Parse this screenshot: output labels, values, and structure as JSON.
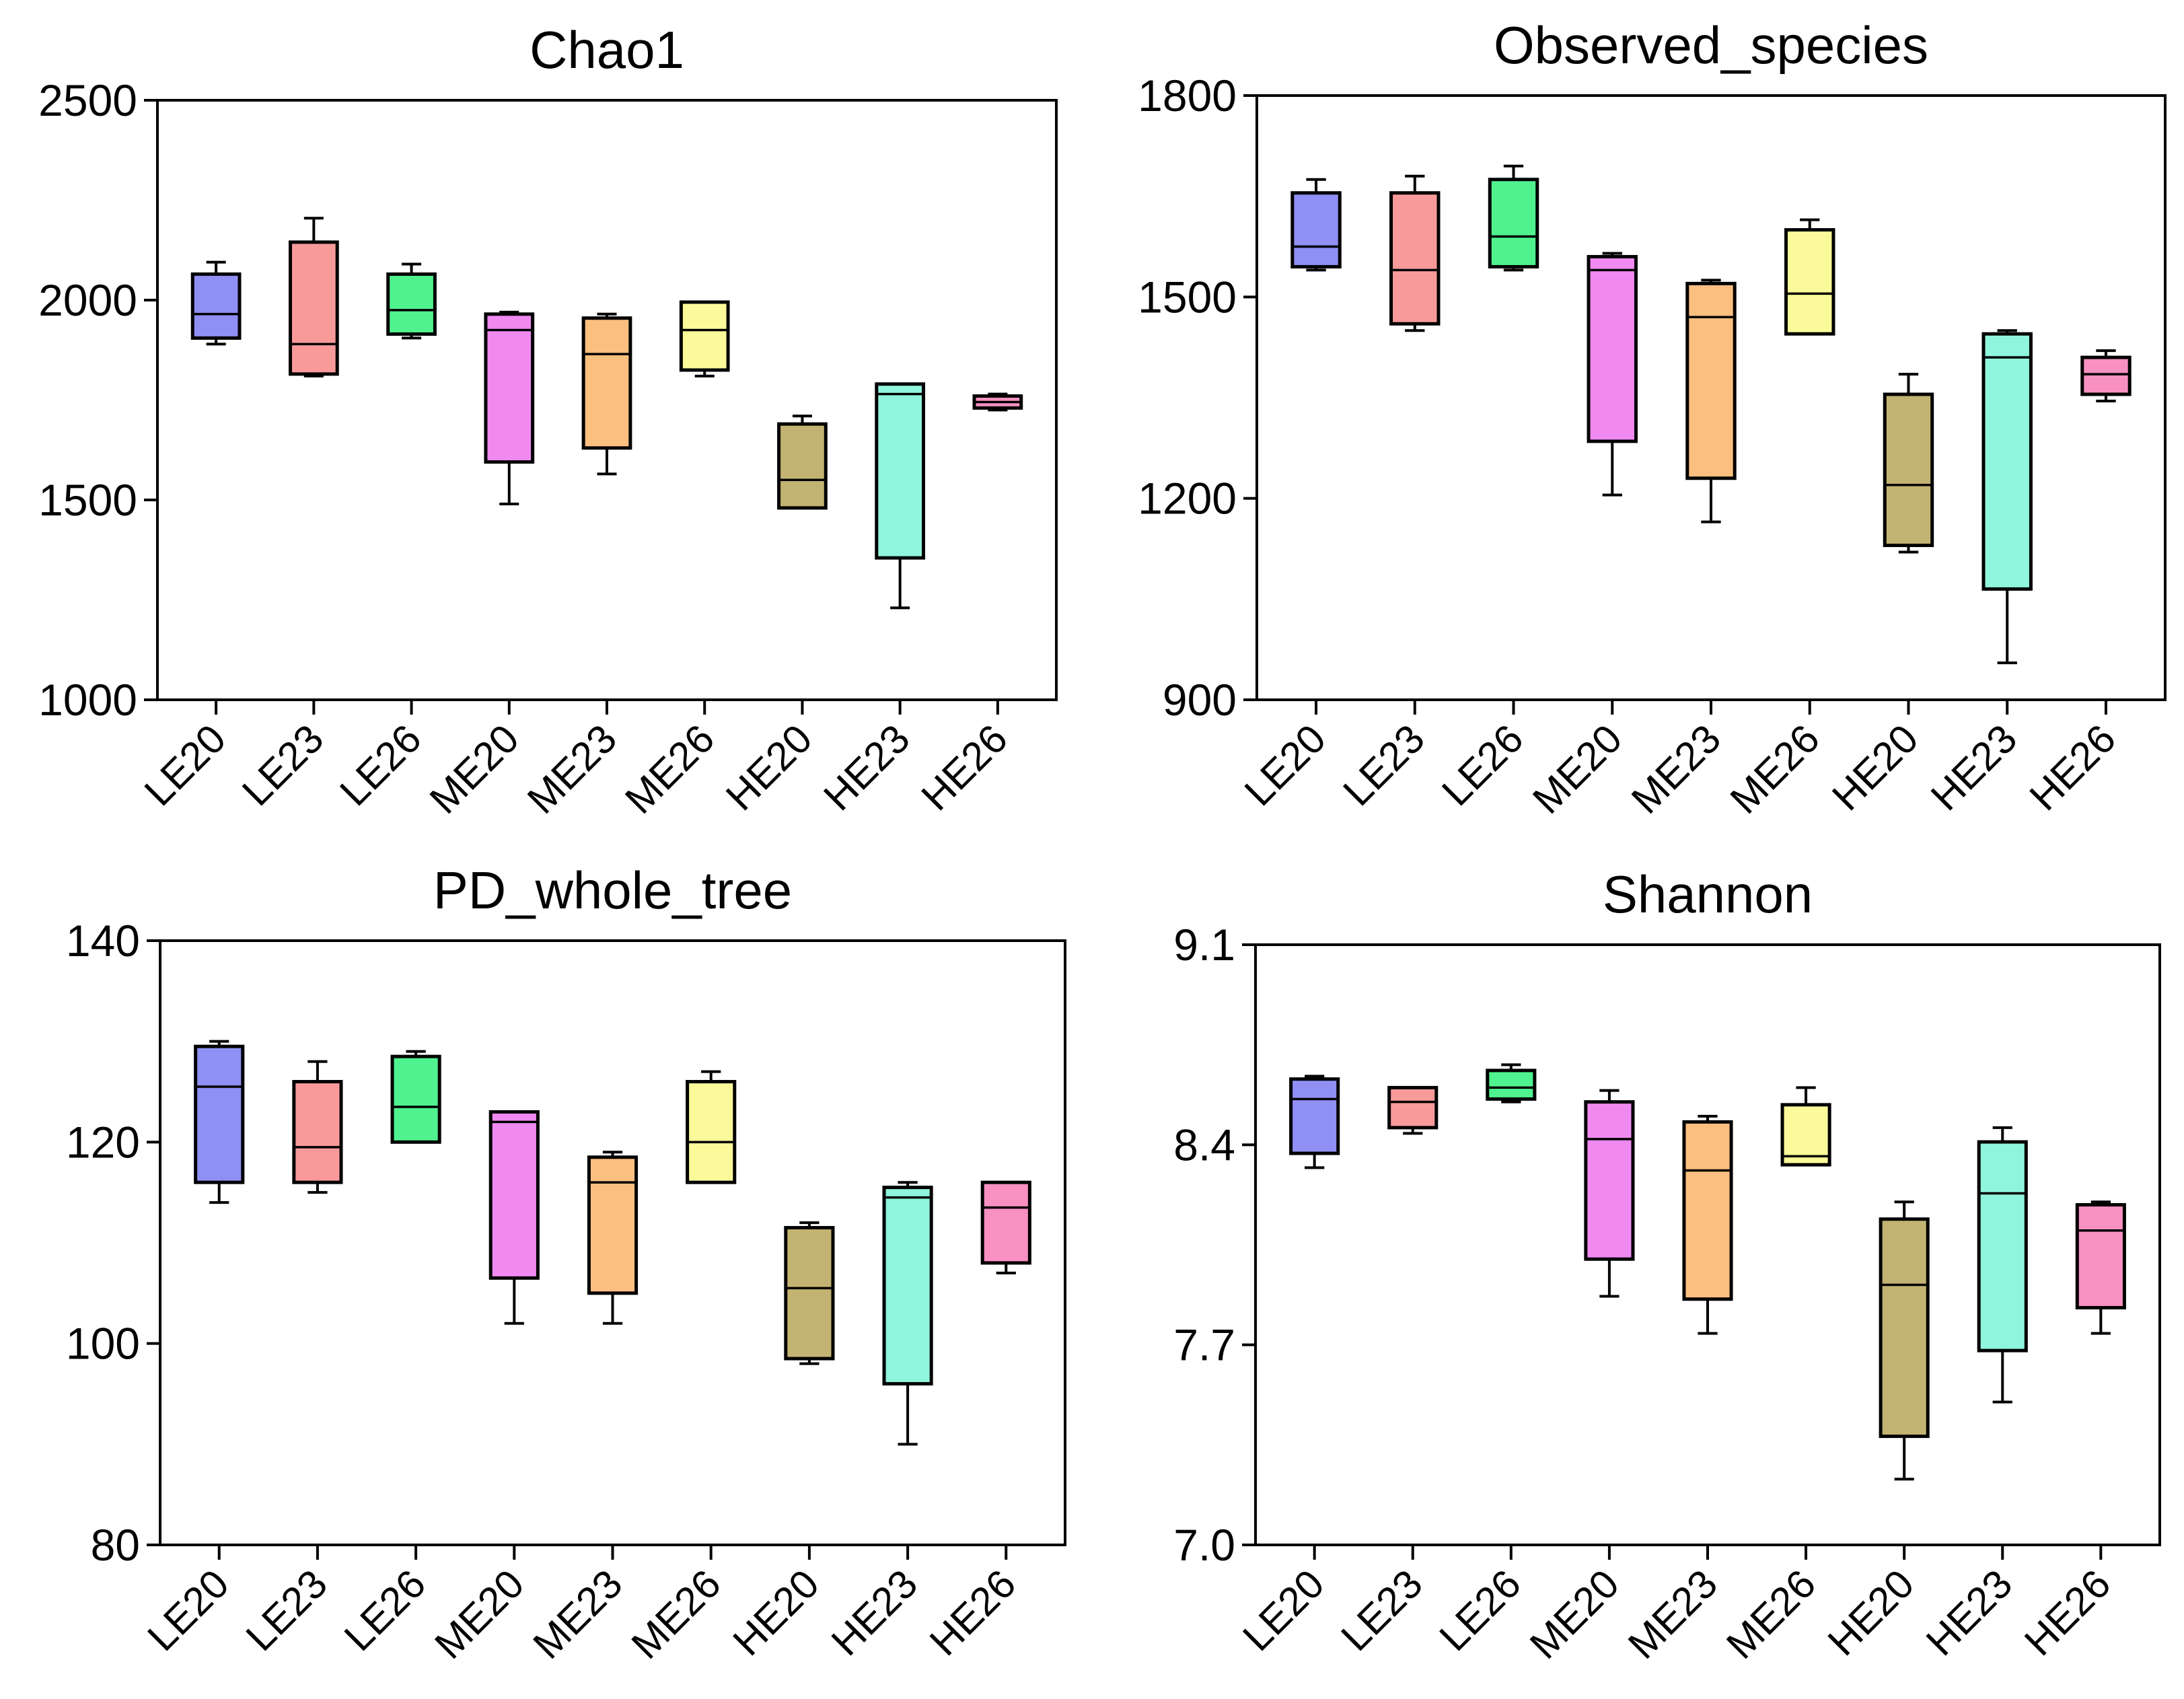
{
  "chart_data": [
    {
      "type": "box",
      "title": "Chao1",
      "xlabel": "",
      "ylabel": "",
      "ylim": [
        1000,
        2500
      ],
      "yticks": [
        1000,
        1500,
        2000,
        2500
      ],
      "categories": [
        "LE20",
        "LE23",
        "LE26",
        "ME20",
        "ME23",
        "ME26",
        "HE20",
        "HE23",
        "HE26"
      ],
      "colors": [
        "#8f8ff4",
        "#f99a9a",
        "#4ff28f",
        "#f08af0",
        "#fbbf80",
        "#fbfa9a",
        "#c3b372",
        "#90f5dd",
        "#f890c1"
      ],
      "boxes": [
        {
          "min": 1890,
          "q1": 1905,
          "median": 1965,
          "q3": 2065,
          "max": 2095
        },
        {
          "min": 1810,
          "q1": 1815,
          "median": 1890,
          "q3": 2145,
          "max": 2205
        },
        {
          "min": 1905,
          "q1": 1915,
          "median": 1975,
          "q3": 2065,
          "max": 2090
        },
        {
          "min": 1490,
          "q1": 1595,
          "median": 1925,
          "q3": 1965,
          "max": 1970
        },
        {
          "min": 1565,
          "q1": 1630,
          "median": 1865,
          "q3": 1955,
          "max": 1965
        },
        {
          "min": 1810,
          "q1": 1825,
          "median": 1925,
          "q3": 1995,
          "max": 1995
        },
        {
          "min": 1480,
          "q1": 1480,
          "median": 1550,
          "q3": 1690,
          "max": 1710
        },
        {
          "min": 1230,
          "q1": 1355,
          "median": 1765,
          "q3": 1790,
          "max": 1790
        },
        {
          "min": 1725,
          "q1": 1730,
          "median": 1745,
          "q3": 1760,
          "max": 1765
        }
      ]
    },
    {
      "type": "box",
      "title": "Observed_species",
      "xlabel": "",
      "ylabel": "",
      "ylim": [
        900,
        1800
      ],
      "yticks": [
        900,
        1200,
        1500,
        1800
      ],
      "categories": [
        "LE20",
        "LE23",
        "LE26",
        "ME20",
        "ME23",
        "ME26",
        "HE20",
        "HE23",
        "HE26"
      ],
      "colors": [
        "#8f8ff4",
        "#f99a9a",
        "#4ff28f",
        "#f08af0",
        "#fbbf80",
        "#fbfa9a",
        "#c3b372",
        "#90f5dd",
        "#f890c1"
      ],
      "boxes": [
        {
          "min": 1540,
          "q1": 1545,
          "median": 1575,
          "q3": 1655,
          "max": 1675
        },
        {
          "min": 1450,
          "q1": 1460,
          "median": 1540,
          "q3": 1655,
          "max": 1680
        },
        {
          "min": 1540,
          "q1": 1545,
          "median": 1590,
          "q3": 1675,
          "max": 1695
        },
        {
          "min": 1205,
          "q1": 1285,
          "median": 1540,
          "q3": 1560,
          "max": 1565
        },
        {
          "min": 1165,
          "q1": 1230,
          "median": 1470,
          "q3": 1520,
          "max": 1525
        },
        {
          "min": 1445,
          "q1": 1445,
          "median": 1505,
          "q3": 1600,
          "max": 1615
        },
        {
          "min": 1120,
          "q1": 1130,
          "median": 1220,
          "q3": 1355,
          "max": 1385
        },
        {
          "min": 955,
          "q1": 1065,
          "median": 1410,
          "q3": 1445,
          "max": 1450
        },
        {
          "min": 1345,
          "q1": 1355,
          "median": 1385,
          "q3": 1410,
          "max": 1420
        }
      ]
    },
    {
      "type": "box",
      "title": "PD_whole_tree",
      "xlabel": "",
      "ylabel": "",
      "ylim": [
        80,
        140
      ],
      "yticks": [
        80,
        100,
        120,
        140
      ],
      "categories": [
        "LE20",
        "LE23",
        "LE26",
        "ME20",
        "ME23",
        "ME26",
        "HE20",
        "HE23",
        "HE26"
      ],
      "colors": [
        "#8f8ff4",
        "#f99a9a",
        "#4ff28f",
        "#f08af0",
        "#fbbf80",
        "#fbfa9a",
        "#c3b372",
        "#90f5dd",
        "#f890c1"
      ],
      "boxes": [
        {
          "min": 114,
          "q1": 116,
          "median": 125.5,
          "q3": 129.5,
          "max": 130
        },
        {
          "min": 115,
          "q1": 116,
          "median": 119.5,
          "q3": 126,
          "max": 128
        },
        {
          "min": 120,
          "q1": 120,
          "median": 123.5,
          "q3": 128.5,
          "max": 129
        },
        {
          "min": 102,
          "q1": 106.5,
          "median": 122,
          "q3": 123,
          "max": 123
        },
        {
          "min": 102,
          "q1": 105,
          "median": 116,
          "q3": 118.5,
          "max": 119
        },
        {
          "min": 116,
          "q1": 116,
          "median": 120,
          "q3": 126,
          "max": 127
        },
        {
          "min": 98,
          "q1": 98.5,
          "median": 105.5,
          "q3": 111.5,
          "max": 112
        },
        {
          "min": 90,
          "q1": 96,
          "median": 114.5,
          "q3": 115.5,
          "max": 116
        },
        {
          "min": 107,
          "q1": 108,
          "median": 113.5,
          "q3": 116,
          "max": 116
        }
      ]
    },
    {
      "type": "box",
      "title": "Shannon",
      "xlabel": "",
      "ylabel": "",
      "ylim": [
        7.0,
        9.1
      ],
      "yticks": [
        7.0,
        7.7,
        8.4,
        9.1
      ],
      "ytick_labels": [
        "7.0",
        "7.7",
        "8.4",
        "9.1"
      ],
      "categories": [
        "LE20",
        "LE23",
        "LE26",
        "ME20",
        "ME23",
        "ME26",
        "HE20",
        "HE23",
        "HE26"
      ],
      "colors": [
        "#8f8ff4",
        "#f99a9a",
        "#4ff28f",
        "#f08af0",
        "#fbbf80",
        "#fbfa9a",
        "#c3b372",
        "#90f5dd",
        "#f890c1"
      ],
      "boxes": [
        {
          "min": 8.32,
          "q1": 8.37,
          "median": 8.56,
          "q3": 8.63,
          "max": 8.64
        },
        {
          "min": 8.44,
          "q1": 8.46,
          "median": 8.55,
          "q3": 8.6,
          "max": 8.6
        },
        {
          "min": 8.55,
          "q1": 8.56,
          "median": 8.6,
          "q3": 8.66,
          "max": 8.68
        },
        {
          "min": 7.87,
          "q1": 8.0,
          "median": 8.42,
          "q3": 8.55,
          "max": 8.59
        },
        {
          "min": 7.74,
          "q1": 7.86,
          "median": 8.31,
          "q3": 8.48,
          "max": 8.5
        },
        {
          "min": 8.33,
          "q1": 8.33,
          "median": 8.36,
          "q3": 8.54,
          "max": 8.6
        },
        {
          "min": 7.23,
          "q1": 7.38,
          "median": 7.91,
          "q3": 8.14,
          "max": 8.2
        },
        {
          "min": 7.5,
          "q1": 7.68,
          "median": 8.23,
          "q3": 8.41,
          "max": 8.46
        },
        {
          "min": 7.74,
          "q1": 7.83,
          "median": 8.1,
          "q3": 8.19,
          "max": 8.2
        }
      ]
    }
  ]
}
